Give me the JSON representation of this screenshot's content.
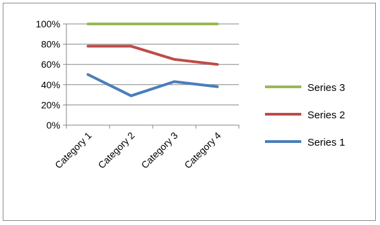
{
  "chart_data": {
    "type": "line",
    "title": "",
    "xlabel": "",
    "ylabel": "",
    "categories": [
      "Category 1",
      "Category 2",
      "Category 3",
      "Category 4"
    ],
    "y_tick_labels": [
      "0%",
      "20%",
      "40%",
      "60%",
      "80%",
      "100%"
    ],
    "ylim": [
      0,
      1
    ],
    "stacked_percent": true,
    "grid": true,
    "legend_position": "right",
    "series": [
      {
        "name": "Series 1",
        "color": "#4a7ebb",
        "values": [
          0.5,
          0.29,
          0.43,
          0.38
        ]
      },
      {
        "name": "Series 2",
        "color": "#be4b48",
        "values": [
          0.78,
          0.78,
          0.65,
          0.6
        ]
      },
      {
        "name": "Series 3",
        "color": "#98b954",
        "values": [
          1.0,
          1.0,
          1.0,
          1.0
        ]
      }
    ],
    "legend_order": [
      "Series 3",
      "Series 2",
      "Series 1"
    ]
  }
}
